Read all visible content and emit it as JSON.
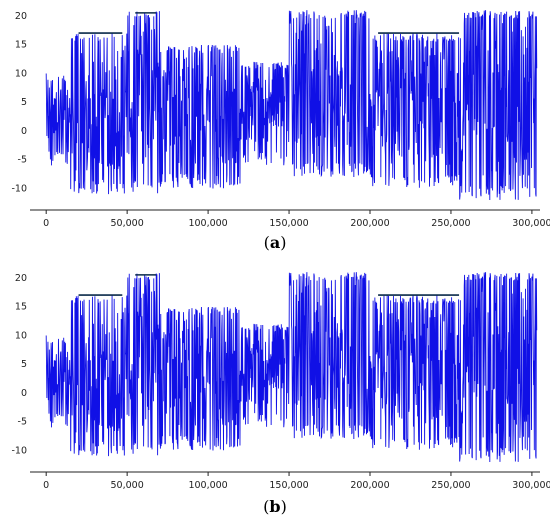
{
  "chart_data": [
    {
      "panel": "a",
      "caption": "a",
      "type": "line",
      "title": "",
      "xlabel": "",
      "ylabel": "",
      "xlim": [
        -10000,
        305000
      ],
      "ylim": [
        -12,
        21
      ],
      "x_ticks": [
        0,
        50000,
        100000,
        150000,
        200000,
        250000,
        300000
      ],
      "x_tick_labels": [
        "0",
        "50,000",
        "100,000",
        "150,000",
        "200,000",
        "250,000",
        "300,000"
      ],
      "y_ticks": [
        -10,
        -5,
        0,
        5,
        10,
        15,
        20
      ],
      "y_tick_labels": [
        "-10",
        "-5",
        "0",
        "5",
        "10",
        "15",
        "20"
      ],
      "grid": false,
      "series_color": "#1010e6",
      "dark_color": "#0a2a4a",
      "x_range": [
        0,
        303000
      ],
      "segments": [
        {
          "x0": 0,
          "x1": 15000,
          "lo": -6,
          "hi": 10
        },
        {
          "x0": 15000,
          "x1": 50000,
          "lo": -11,
          "hi": 17
        },
        {
          "x0": 50000,
          "x1": 70000,
          "lo": -11,
          "hi": 21
        },
        {
          "x0": 70000,
          "x1": 120000,
          "lo": -10,
          "hi": 15
        },
        {
          "x0": 120000,
          "x1": 150000,
          "lo": -6,
          "hi": 12
        },
        {
          "x0": 150000,
          "x1": 200000,
          "lo": -8,
          "hi": 21
        },
        {
          "x0": 200000,
          "x1": 255000,
          "lo": -10,
          "hi": 17
        },
        {
          "x0": 255000,
          "x1": 303000,
          "lo": -12,
          "hi": 21
        }
      ],
      "flat_top_segments": [
        {
          "x0": 20000,
          "x1": 47000,
          "y": 17
        },
        {
          "x0": 55000,
          "x1": 68000,
          "y": 20.5
        },
        {
          "x0": 205000,
          "x1": 255000,
          "y": 17
        }
      ]
    },
    {
      "panel": "b",
      "caption": "b",
      "type": "line",
      "title": "",
      "xlabel": "",
      "ylabel": "",
      "xlim": [
        -10000,
        305000
      ],
      "ylim": [
        -12,
        21
      ],
      "x_ticks": [
        0,
        50000,
        100000,
        150000,
        200000,
        250000,
        300000
      ],
      "x_tick_labels": [
        "0",
        "50,000",
        "100,000",
        "150,000",
        "200,000",
        "250,000",
        "300,000"
      ],
      "y_ticks": [
        -10,
        -5,
        0,
        5,
        10,
        15,
        20
      ],
      "y_tick_labels": [
        "-10",
        "-5",
        "0",
        "5",
        "10",
        "15",
        "20"
      ],
      "grid": false,
      "series_color": "#1010e6",
      "dark_color": "#0a2a4a",
      "x_range": [
        0,
        303000
      ],
      "segments": [
        {
          "x0": 0,
          "x1": 15000,
          "lo": -6,
          "hi": 10
        },
        {
          "x0": 15000,
          "x1": 50000,
          "lo": -11,
          "hi": 17
        },
        {
          "x0": 50000,
          "x1": 70000,
          "lo": -11,
          "hi": 21
        },
        {
          "x0": 70000,
          "x1": 120000,
          "lo": -10,
          "hi": 15
        },
        {
          "x0": 120000,
          "x1": 150000,
          "lo": -6,
          "hi": 12
        },
        {
          "x0": 150000,
          "x1": 200000,
          "lo": -8,
          "hi": 21
        },
        {
          "x0": 200000,
          "x1": 255000,
          "lo": -10,
          "hi": 17
        },
        {
          "x0": 255000,
          "x1": 303000,
          "lo": -12,
          "hi": 21
        }
      ],
      "flat_top_segments": [
        {
          "x0": 20000,
          "x1": 47000,
          "y": 17
        },
        {
          "x0": 55000,
          "x1": 68000,
          "y": 20.5
        },
        {
          "x0": 205000,
          "x1": 255000,
          "y": 17
        }
      ]
    }
  ]
}
